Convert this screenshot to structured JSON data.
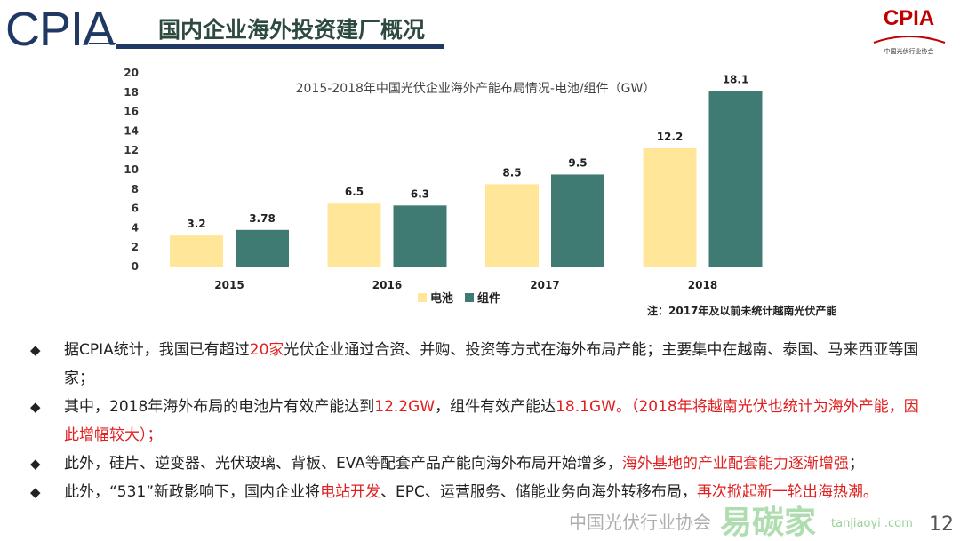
{
  "header": {
    "logo_text": "CPIA",
    "title": "国内企业海外投资建厂概况",
    "org_logo": {
      "text": "CPIA",
      "subtitle": "中国光伏行业协会"
    }
  },
  "chart_data": {
    "type": "bar",
    "title": "2015-2018年中国光伏企业海外产能布局情况-电池/组件（GW）",
    "categories": [
      "2015",
      "2016",
      "2017",
      "2018"
    ],
    "series": [
      {
        "name": "电池",
        "values": [
          3.2,
          6.5,
          8.5,
          12.2
        ],
        "color": "#ffe699"
      },
      {
        "name": "组件",
        "values": [
          3.78,
          6.3,
          9.5,
          18.1
        ],
        "color": "#3f7a73"
      }
    ],
    "data_labels": [
      [
        "3.2",
        "6.5",
        "8.5",
        "12.2"
      ],
      [
        "3.78",
        "6.3",
        "9.5",
        "18.1"
      ]
    ],
    "ylim": [
      0,
      20
    ],
    "yticks": [
      "0",
      "2",
      "4",
      "6",
      "8",
      "10",
      "12",
      "14",
      "16",
      "18",
      "20"
    ],
    "grid": false,
    "legend": "bottom",
    "note": "注：2017年及以前未统计越南光伏产能"
  },
  "bullets": [
    [
      {
        "t": "据CPIA统计，我国已有超过"
      },
      {
        "t": "20家",
        "red": true
      },
      {
        "t": "光伏企业通过合资、并购、投资等方式在海外布局产能；主要集中在越南、泰国、马来西亚等国家；"
      }
    ],
    [
      {
        "t": "其中，2018年海外布局的电池片有效产能达到"
      },
      {
        "t": "12.2GW",
        "red": true
      },
      {
        "t": "，组件有效产能达"
      },
      {
        "t": "18.1GW。（2018年将越南光伏也统计为海外产能，因此增幅较大）；",
        "red": true
      }
    ],
    [
      {
        "t": "此外，硅片、逆变器、光伏玻璃、背板、EVA等配套产品产能向海外布局开始增多，"
      },
      {
        "t": "海外基地的产业配套能力逐渐增强",
        "red": true
      },
      {
        "t": "；"
      }
    ],
    [
      {
        "t": "此外，“531”新政影响下，国内企业将"
      },
      {
        "t": "电站开发",
        "red": true
      },
      {
        "t": "、EPC、运营服务、储能业务向海外转移布局，"
      },
      {
        "t": "再次掀起新一轮出海热潮。",
        "red": true
      }
    ]
  ],
  "watermark": {
    "wechat": "中国光伏行业协会",
    "brand": "易碳家",
    "site": "tanjiaoyi .com"
  },
  "page_number": "12"
}
